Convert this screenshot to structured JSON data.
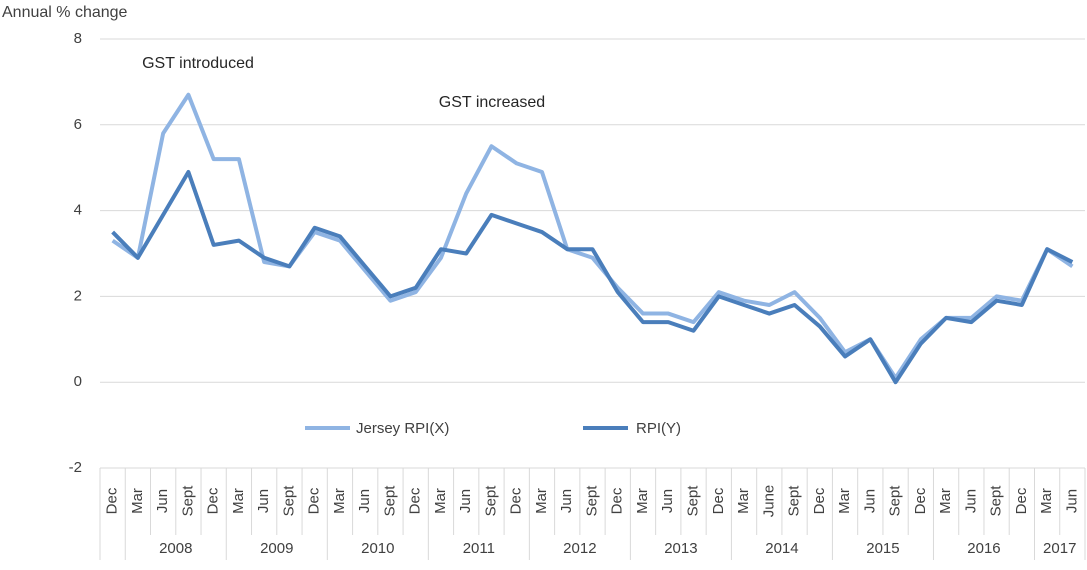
{
  "chart_data": {
    "type": "line",
    "y_axis_label": "Annual % change",
    "categories": [
      "Dec",
      "Mar",
      "Jun",
      "Sept",
      "Dec",
      "Mar",
      "Jun",
      "Sept",
      "Dec",
      "Mar",
      "Jun",
      "Sept",
      "Dec",
      "Mar",
      "Jun",
      "Sept",
      "Dec",
      "Mar",
      "Jun",
      "Sept",
      "Dec",
      "Mar",
      "Jun",
      "Sept",
      "Dec",
      "Mar",
      "June",
      "Sept",
      "Dec",
      "Mar",
      "Jun",
      "Sept",
      "Dec",
      "Mar",
      "Jun",
      "Sept",
      "Dec",
      "Mar",
      "Jun"
    ],
    "category_years": [
      null,
      "2008",
      "2008",
      "2008",
      "2008",
      "2009",
      "2009",
      "2009",
      "2009",
      "2010",
      "2010",
      "2010",
      "2010",
      "2011",
      "2011",
      "2011",
      "2011",
      "2012",
      "2012",
      "2012",
      "2012",
      "2013",
      "2013",
      "2013",
      "2013",
      "2014",
      "2014",
      "2014",
      "2014",
      "2015",
      "2015",
      "2015",
      "2015",
      "2016",
      "2016",
      "2016",
      "2016",
      "2017",
      "2017"
    ],
    "series": [
      {
        "name": "Jersey RPI(X)",
        "color": "#8fb4e3",
        "values": [
          3.3,
          2.9,
          5.8,
          6.7,
          5.2,
          5.2,
          2.8,
          2.7,
          3.5,
          3.3,
          2.6,
          1.9,
          2.1,
          2.9,
          4.4,
          5.5,
          5.1,
          4.9,
          3.1,
          2.9,
          2.2,
          1.6,
          1.6,
          1.4,
          2.1,
          1.9,
          1.8,
          2.1,
          1.5,
          0.7,
          1.0,
          0.1,
          1.0,
          1.5,
          1.5,
          2.0,
          1.9,
          3.1,
          2.7
        ]
      },
      {
        "name": "RPI(Y)",
        "color": "#4a7ebb",
        "values": [
          3.5,
          2.9,
          3.9,
          4.9,
          3.2,
          3.3,
          2.9,
          2.7,
          3.6,
          3.4,
          2.7,
          2.0,
          2.2,
          3.1,
          3.0,
          3.9,
          3.7,
          3.5,
          3.1,
          3.1,
          2.1,
          1.4,
          1.4,
          1.2,
          2.0,
          1.8,
          1.6,
          1.8,
          1.3,
          0.6,
          1.0,
          0.0,
          0.9,
          1.5,
          1.4,
          1.9,
          1.8,
          3.1,
          2.8
        ]
      }
    ],
    "annotations": [
      "GST introduced",
      "GST increased"
    ],
    "ylim": [
      -2,
      8
    ],
    "yticks": [
      -2,
      0,
      2,
      4,
      6,
      8
    ],
    "grid": true
  }
}
